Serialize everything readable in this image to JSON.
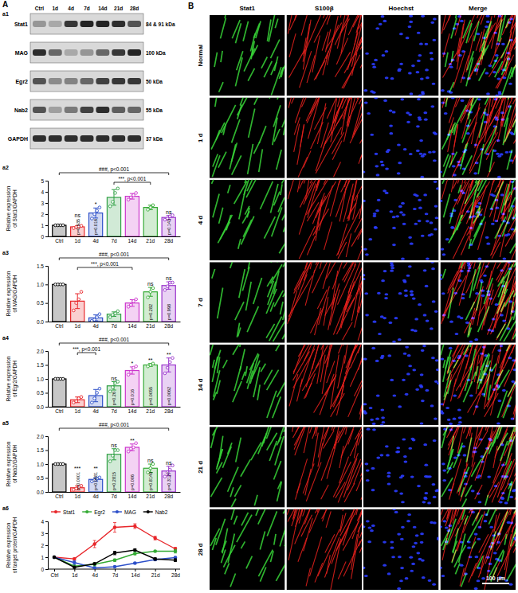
{
  "panel_labels": [
    "A",
    "B"
  ],
  "blot": {
    "label": "a1",
    "lanes": [
      "Ctrl",
      "1d",
      "4d",
      "7d",
      "14d",
      "21d",
      "28d"
    ],
    "rows": [
      {
        "name": "Stat1",
        "size": "84 & 91 kDa",
        "intensity": [
          0.35,
          0.25,
          0.85,
          0.95,
          0.95,
          0.9,
          0.7
        ]
      },
      {
        "name": "MAG",
        "size": "100 kDa",
        "intensity": [
          0.9,
          0.6,
          0.25,
          0.35,
          0.6,
          0.85,
          0.95
        ]
      },
      {
        "name": "Egr2",
        "size": "50 kDa",
        "intensity": [
          0.7,
          0.4,
          0.45,
          0.6,
          0.8,
          0.85,
          0.85
        ]
      },
      {
        "name": "Nab2",
        "size": "55 kDa",
        "intensity": [
          0.7,
          0.3,
          0.5,
          0.8,
          0.9,
          0.65,
          0.6
        ]
      },
      {
        "name": "GAPDH",
        "size": "37 kDa",
        "intensity": [
          0.9,
          0.9,
          0.9,
          0.9,
          0.9,
          0.9,
          0.9
        ]
      }
    ]
  },
  "chart_data": [
    {
      "type": "bar",
      "label": "a2",
      "ylabel": [
        "Relative expression",
        "of Stat1/GAPDH"
      ],
      "categories": [
        "Ctrl",
        "1d",
        "4d",
        "7d",
        "14d",
        "21d",
        "28d"
      ],
      "colors": [
        "#000000",
        "#e8262a",
        "#2c4fc9",
        "#2ea043",
        "#cc33cc",
        "#33aa33",
        "#9933cc"
      ],
      "series": [
        {
          "values": [
            1,
            0.86,
            2.1,
            3.5,
            3.6,
            2.6,
            1.7
          ],
          "errors": [
            0.05,
            0.08,
            0.45,
            0.7,
            0.25,
            0.2,
            0.18
          ],
          "points": [
            [
              1,
              1,
              1,
              1
            ],
            [
              0.75,
              0.85,
              0.9,
              0.95
            ],
            [
              1.6,
              2.0,
              2.3,
              2.6
            ],
            [
              2.7,
              3.1,
              3.9,
              4.3
            ],
            [
              3.3,
              3.5,
              3.7,
              3.9
            ],
            [
              2.4,
              2.6,
              2.8
            ],
            [
              1.5,
              1.6,
              1.8,
              1.9
            ]
          ]
        }
      ],
      "ylim": [
        0,
        5
      ],
      "yticks": [
        0,
        1,
        2,
        3,
        4,
        5
      ],
      "significance": [
        null,
        "ns",
        "*",
        null,
        null,
        null,
        "ns"
      ],
      "p_values": [
        null,
        "p=0.935",
        "p=0.016",
        null,
        null,
        null,
        "p=0.143"
      ],
      "brackets": [
        {
          "text": "***, p<0.001",
          "from": "7d",
          "to": "21d"
        }
      ],
      "overall": "###, p<0.001"
    },
    {
      "type": "bar",
      "label": "a3",
      "ylabel": [
        "Relative expression",
        "of MAG/GAPDH"
      ],
      "categories": [
        "Ctrl",
        "1d",
        "4d",
        "7d",
        "14d",
        "21d",
        "28d"
      ],
      "colors": [
        "#000000",
        "#e8262a",
        "#2c4fc9",
        "#2ea043",
        "#cc33cc",
        "#33aa33",
        "#9933cc"
      ],
      "series": [
        {
          "values": [
            1,
            0.55,
            0.1,
            0.2,
            0.5,
            0.8,
            0.97
          ],
          "errors": [
            0.02,
            0.2,
            0.08,
            0.06,
            0.09,
            0.12,
            0.1
          ],
          "points": [
            [
              1,
              1,
              1,
              1
            ],
            [
              0.3,
              0.5,
              0.6,
              0.8
            ],
            [
              0.02,
              0.05,
              0.12,
              0.2
            ],
            [
              0.12,
              0.18,
              0.22,
              0.28
            ],
            [
              0.4,
              0.45,
              0.55,
              0.6
            ],
            [
              0.65,
              0.8,
              0.9
            ],
            [
              0.85,
              0.95,
              1.05,
              1.05
            ]
          ]
        }
      ],
      "ylim": [
        0,
        1.5
      ],
      "yticks": [
        {
          "value": 0,
          "label": "0.0"
        },
        0.5,
        {
          "value": 1,
          "label": "1.0"
        },
        1.5
      ],
      "significance": [
        null,
        null,
        null,
        null,
        null,
        "ns",
        "ns"
      ],
      "p_values": [
        null,
        null,
        null,
        null,
        null,
        "p=0.282",
        "p=0.998"
      ],
      "brackets": [
        {
          "text": "***, p<0.001",
          "from": "1d",
          "to": "14d"
        }
      ],
      "overall": "###, p<0.001"
    },
    {
      "type": "bar",
      "label": "a4",
      "ylabel": [
        "Relative expression",
        "of Egr2/GAPDH"
      ],
      "categories": [
        "Ctrl",
        "1d",
        "4d",
        "7d",
        "14d",
        "21d",
        "28d"
      ],
      "colors": [
        "#000000",
        "#e8262a",
        "#2c4fc9",
        "#2ea043",
        "#cc33cc",
        "#33aa33",
        "#9933cc"
      ],
      "series": [
        {
          "values": [
            1,
            0.25,
            0.4,
            0.75,
            1.3,
            1.5,
            1.5
          ],
          "errors": [
            0.02,
            0.1,
            0.22,
            0.15,
            0.13,
            0.05,
            0.25
          ],
          "points": [
            [
              1,
              1,
              1,
              1
            ],
            [
              0.15,
              0.2,
              0.3,
              0.35
            ],
            [
              0.15,
              0.3,
              0.5,
              0.65
            ],
            [
              0.55,
              0.7,
              0.85,
              0.9
            ],
            [
              1.15,
              1.25,
              1.4,
              1.45
            ],
            [
              1.45,
              1.5,
              1.55
            ],
            [
              1.2,
              1.4,
              1.6,
              1.75
            ]
          ]
        }
      ],
      "ylim": [
        0,
        2
      ],
      "yticks": [
        {
          "value": 0,
          "label": "0.0"
        },
        0.5,
        {
          "value": 1,
          "label": "1.0"
        },
        1.5,
        {
          "value": 2,
          "label": "2.0"
        }
      ],
      "significance": [
        null,
        null,
        null,
        "ns",
        "*",
        "**",
        "**"
      ],
      "p_values": [
        null,
        null,
        null,
        "p=0.26",
        "p=0.016",
        "p=0.0055",
        "p=0.0062"
      ],
      "brackets": [
        {
          "text": "***, p<0.001",
          "from": "1d",
          "to": "4d"
        }
      ],
      "overall": "###, p<0.001"
    },
    {
      "type": "bar",
      "label": "a5",
      "ylabel": [
        "Relative expression",
        "of Nab2/GAPDH"
      ],
      "categories": [
        "Ctrl",
        "1d",
        "4d",
        "7d",
        "14d",
        "21d",
        "28d"
      ],
      "colors": [
        "#000000",
        "#e8262a",
        "#2c4fc9",
        "#2ea043",
        "#cc33cc",
        "#33aa33",
        "#9933cc"
      ],
      "series": [
        {
          "values": [
            1,
            0.15,
            0.45,
            1.35,
            1.6,
            0.85,
            0.75
          ],
          "errors": [
            0.02,
            0.07,
            0.06,
            0.2,
            0.12,
            0.15,
            0.17
          ],
          "points": [
            [
              1,
              1,
              1,
              1
            ],
            [
              0.08,
              0.12,
              0.18,
              0.22
            ],
            [
              0.38,
              0.42,
              0.48,
              0.52
            ],
            [
              1.1,
              1.3,
              1.5,
              1.5
            ],
            [
              1.45,
              1.55,
              1.6,
              1.75
            ],
            [
              0.7,
              0.85,
              1.0
            ],
            [
              0.55,
              0.7,
              0.8,
              0.95
            ]
          ]
        }
      ],
      "ylim": [
        0,
        2
      ],
      "yticks": [
        {
          "value": 0,
          "label": "0.0"
        },
        0.5,
        {
          "value": 1,
          "label": "1.0"
        },
        1.5,
        {
          "value": 2,
          "label": "2.0"
        }
      ],
      "significance": [
        null,
        "***",
        "**",
        "ns",
        "**",
        "ns",
        "ns"
      ],
      "p_values": [
        null,
        "p=0.0001",
        "p=0.0081",
        "p=0.2815",
        "p=0.006",
        "p=0.8149",
        "p=0.3127"
      ],
      "brackets": [],
      "overall": "###, p<0.001"
    },
    {
      "type": "line",
      "label": "a6",
      "ylabel": [
        "Relative expression",
        "of target protein/GAPDH"
      ],
      "categories": [
        "Ctrl",
        "1d",
        "4d",
        "7d",
        "14d",
        "21d",
        "28d"
      ],
      "series": [
        {
          "name": "Stat1",
          "color": "#e8262a",
          "values": [
            1,
            0.86,
            2.1,
            3.5,
            3.6,
            2.6,
            1.7
          ],
          "errors": [
            0.05,
            0.08,
            0.3,
            0.4,
            0.2,
            0.15,
            0.12
          ]
        },
        {
          "name": "Egr2",
          "color": "#33aa33",
          "values": [
            1,
            0.25,
            0.4,
            0.75,
            1.3,
            1.5,
            1.5
          ],
          "errors": [
            0.02,
            0.08,
            0.15,
            0.1,
            0.1,
            0.05,
            0.15
          ]
        },
        {
          "name": "MAG",
          "color": "#2c4fc9",
          "values": [
            1,
            0.55,
            0.1,
            0.2,
            0.5,
            0.8,
            0.97
          ],
          "errors": [
            0.02,
            0.15,
            0.05,
            0.05,
            0.07,
            0.1,
            0.08
          ]
        },
        {
          "name": "Nab2",
          "color": "#000000",
          "values": [
            1,
            0.15,
            0.45,
            1.35,
            1.6,
            0.85,
            0.75
          ],
          "errors": [
            0.02,
            0.05,
            0.05,
            0.15,
            0.1,
            0.1,
            0.12
          ]
        }
      ],
      "ylim": [
        0,
        4
      ],
      "yticks": [
        0,
        1,
        2,
        3,
        4
      ],
      "legend": "top",
      "marker": "circle"
    }
  ],
  "microscopy": {
    "columns": [
      "Stat1",
      "S100β",
      "Hoechst",
      "Merge"
    ],
    "rows": [
      "Normal",
      "1 d",
      "4 d",
      "7 d",
      "14 d",
      "21 d",
      "28 d"
    ],
    "scale_bar": "100 μm"
  }
}
